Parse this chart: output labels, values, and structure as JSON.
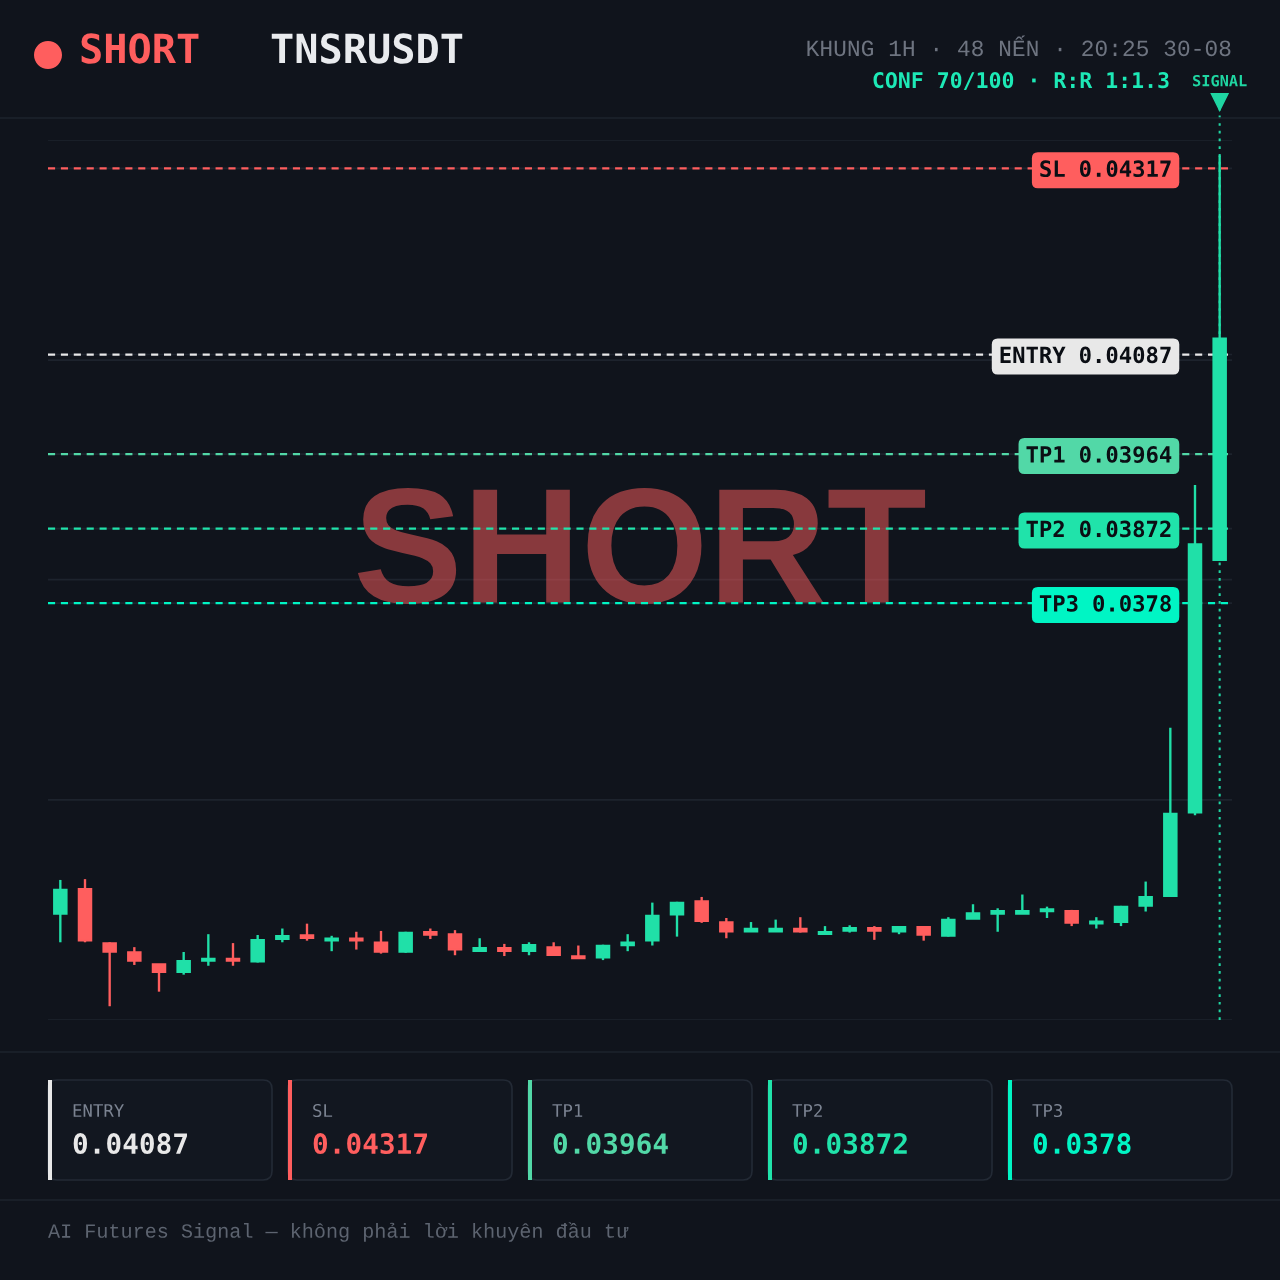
{
  "chart_data": {
    "type": "candlestick",
    "title": "TNSRUSDT",
    "subtitle": "KHUNG 1H · 48 NẾN · 20:25 30-08",
    "categories": [
      null,
      null,
      null,
      null,
      null,
      null,
      null,
      null,
      null,
      null,
      null,
      null,
      null,
      null,
      null,
      null,
      null,
      null,
      null,
      null,
      null,
      null,
      null,
      null,
      null,
      null,
      null,
      null,
      null,
      null,
      null,
      null,
      null,
      null,
      null,
      null,
      null,
      null,
      null,
      null,
      null,
      null,
      null,
      null,
      null,
      null,
      null,
      null
    ],
    "ohlc": [
      [
        0.03396,
        0.03438,
        0.03361,
        0.03426
      ],
      [
        0.03427,
        0.03439,
        0.03361,
        0.03363
      ],
      [
        0.0336,
        0.03361,
        0.03282,
        0.03349
      ],
      [
        0.03349,
        0.03355,
        0.03333,
        0.03338
      ],
      [
        0.03334,
        0.03334,
        0.033,
        0.03324
      ],
      [
        0.03324,
        0.03349,
        0.03321,
        0.03338
      ],
      [
        0.03338,
        0.03371,
        0.03332,
        0.03341
      ],
      [
        0.03341,
        0.0336,
        0.03332,
        0.03338
      ],
      [
        0.03337,
        0.0337,
        0.03336,
        0.03364
      ],
      [
        0.03365,
        0.03378,
        0.03361,
        0.03369
      ],
      [
        0.0337,
        0.03384,
        0.03363,
        0.03366
      ],
      [
        0.03363,
        0.03369,
        0.0335,
        0.03366
      ],
      [
        0.03366,
        0.03374,
        0.03352,
        0.03363
      ],
      [
        0.03361,
        0.03375,
        0.03347,
        0.03349
      ],
      [
        0.03349,
        0.03374,
        0.03348,
        0.03373
      ],
      [
        0.03374,
        0.03378,
        0.03365,
        0.0337
      ],
      [
        0.03371,
        0.03376,
        0.03345,
        0.03352
      ],
      [
        0.0335,
        0.03366,
        0.0335,
        0.03354
      ],
      [
        0.03354,
        0.03359,
        0.03344,
        0.0335
      ],
      [
        0.0335,
        0.03361,
        0.03345,
        0.03358
      ],
      [
        0.03355,
        0.03361,
        0.03345,
        0.03345
      ],
      [
        0.03344,
        0.03357,
        0.03341,
        0.03341
      ],
      [
        0.03342,
        0.03358,
        0.03339,
        0.03357
      ],
      [
        0.03357,
        0.03371,
        0.0335,
        0.03361
      ],
      [
        0.03363,
        0.0341,
        0.03357,
        0.03394
      ],
      [
        0.03395,
        0.03411,
        0.03368,
        0.0341
      ],
      [
        0.03412,
        0.03417,
        0.03385,
        0.03387
      ],
      [
        0.03386,
        0.03391,
        0.03366,
        0.03374
      ],
      [
        0.03374,
        0.03386,
        0.03374,
        0.03378
      ],
      [
        0.03374,
        0.03389,
        0.03374,
        0.03378
      ],
      [
        0.03378,
        0.03392,
        0.03373,
        0.03374
      ],
      [
        0.03371,
        0.03381,
        0.03371,
        0.03374
      ],
      [
        0.03375,
        0.03382,
        0.03373,
        0.03379
      ],
      [
        0.03379,
        0.03381,
        0.03364,
        0.03375
      ],
      [
        0.03374,
        0.03381,
        0.03371,
        0.0338
      ],
      [
        0.0338,
        0.0338,
        0.03363,
        0.0337
      ],
      [
        0.03369,
        0.03392,
        0.03368,
        0.03389
      ],
      [
        0.0339,
        0.03408,
        0.0339,
        0.03397
      ],
      [
        0.03396,
        0.03403,
        0.03374,
        0.034
      ],
      [
        0.03396,
        0.0342,
        0.03396,
        0.034
      ],
      [
        0.03399,
        0.03405,
        0.03391,
        0.03402
      ],
      [
        0.034,
        0.03401,
        0.03381,
        0.03385
      ],
      [
        0.03384,
        0.03392,
        0.03378,
        0.03387
      ],
      [
        0.03386,
        0.03406,
        0.03381,
        0.03405
      ],
      [
        0.03406,
        0.03436,
        0.03399,
        0.03417
      ],
      [
        0.03418,
        0.03626,
        0.03417,
        0.0352
      ],
      [
        0.03521,
        0.03926,
        0.03518,
        0.03853
      ],
      [
        0.03833,
        0.04333,
        0.03833,
        0.04107
      ]
    ],
    "colors": [
      "#20e0a8",
      "#ff5e5e",
      "#ff5e5e",
      "#ff5e5e",
      "#ff5e5e",
      "#20e0a8",
      "#20e0a8",
      "#ff5e5e",
      "#20e0a8",
      "#20e0a8",
      "#ff5e5e",
      "#20e0a8",
      "#ff5e5e",
      "#ff5e5e",
      "#20e0a8",
      "#ff5e5e",
      "#ff5e5e",
      "#20e0a8",
      "#ff5e5e",
      "#20e0a8",
      "#ff5e5e",
      "#ff5e5e",
      "#20e0a8",
      "#20e0a8",
      "#20e0a8",
      "#20e0a8",
      "#ff5e5e",
      "#ff5e5e",
      "#20e0a8",
      "#20e0a8",
      "#ff5e5e",
      "#20e0a8",
      "#20e0a8",
      "#ff5e5e",
      "#20e0a8",
      "#ff5e5e",
      "#20e0a8",
      "#20e0a8",
      "#20e0a8",
      "#20e0a8",
      "#20e0a8",
      "#ff5e5e",
      "#20e0a8",
      "#20e0a8",
      "#20e0a8",
      "#20e0a8",
      "#20e0a8",
      "#20e0a8"
    ],
    "ylim": [
      0.03265,
      0.04352
    ],
    "yticks": [
      {
        "value": 0.03265,
        "label": null
      },
      {
        "value": 0.03537,
        "label": null
      },
      {
        "value": 0.0378,
        "label": "0.0378"
      },
      {
        "value": 0.03809,
        "label": null
      },
      {
        "value": 0.03872,
        "label": "0.03872"
      },
      {
        "value": 0.03964,
        "label": "0.03964"
      },
      {
        "value": 0.0408,
        "label": null
      },
      {
        "value": 0.04087,
        "label": "0.04087"
      },
      {
        "value": 0.04317,
        "label": "0.04317"
      },
      {
        "value": 0.04352,
        "label": null
      }
    ],
    "grid": "y",
    "tick_labels": "y",
    "ref_lines": [
      {
        "axis": "y",
        "value": 0.04087,
        "label": "ENTRY",
        "color": "#e8e8e8",
        "line_style": "dashed"
      },
      {
        "axis": "y",
        "value": 0.04317,
        "label": "SL",
        "color": "#ff5e5e",
        "line_style": "dashed"
      },
      {
        "axis": "y",
        "value": 0.03964,
        "label": "TP1",
        "color": "#52d8a7",
        "line_style": "dashed"
      },
      {
        "axis": "y",
        "value": 0.03872,
        "label": "TP2",
        "color": "#20e3aa",
        "line_style": "dashed"
      },
      {
        "axis": "y",
        "value": 0.0378,
        "label": "TP3",
        "color": "#00f5c4",
        "line_style": "dashed"
      },
      {
        "axis": "x",
        "label": "SIGNAL",
        "color": "#1fd6a2",
        "line_style": "dotted"
      }
    ],
    "annotations": [
      "SHORT",
      "CONF 70/100 · R:R 1:1.3",
      "SHORT",
      "AI Futures Signal — không phải lời khuyên đầu tư",
      "0.04087",
      "0.04317",
      "0.03964",
      "0.03872",
      "0.0378"
    ]
  }
}
